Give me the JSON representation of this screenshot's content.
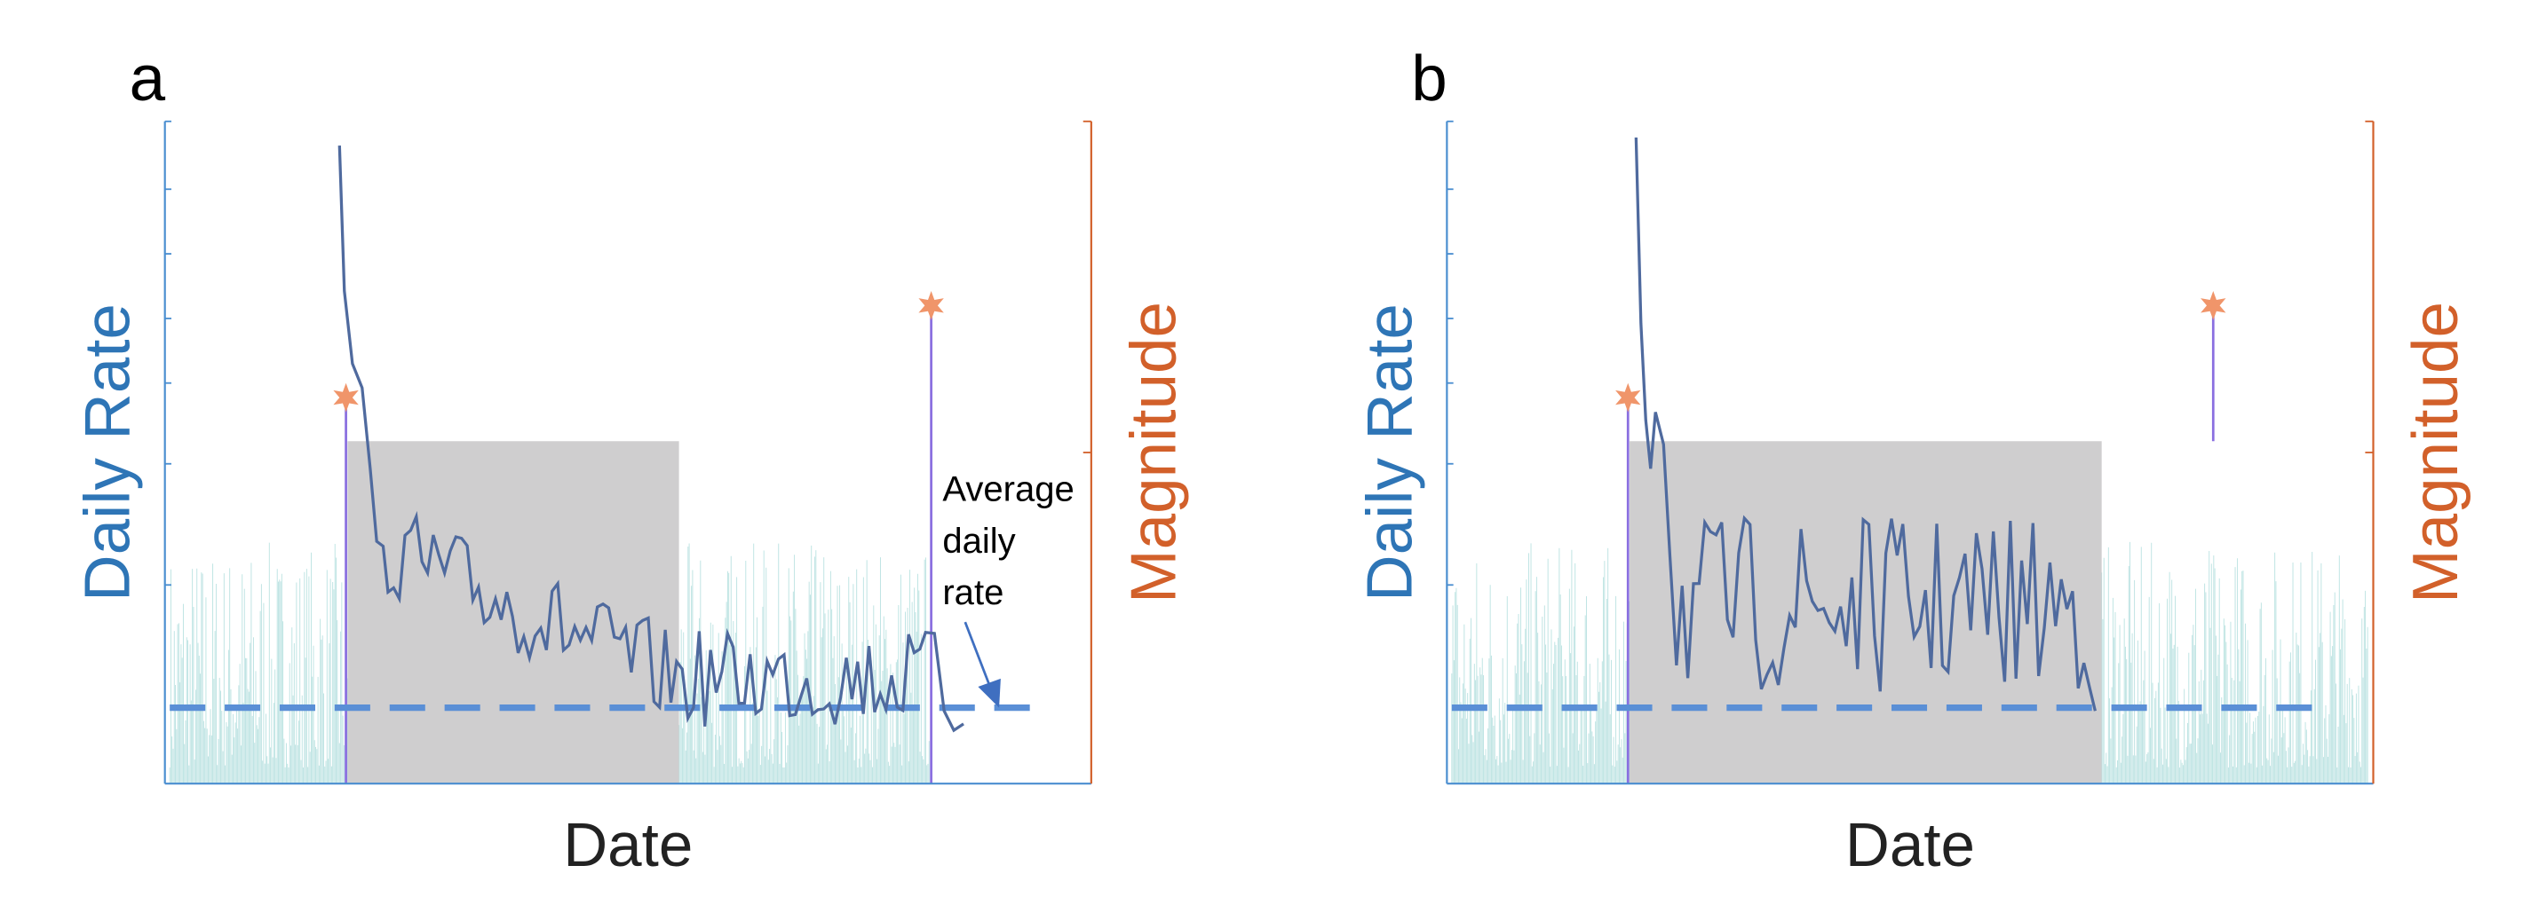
{
  "panels": [
    {
      "label": "a",
      "y_label": "Daily Rate",
      "y2_label": "Magnitude",
      "x_label": "Date",
      "annotation": [
        "Average",
        "daily",
        "rate"
      ]
    },
    {
      "label": "b",
      "y_label": "Daily Rate",
      "y2_label": "Magnitude",
      "x_label": "Date"
    }
  ]
}
